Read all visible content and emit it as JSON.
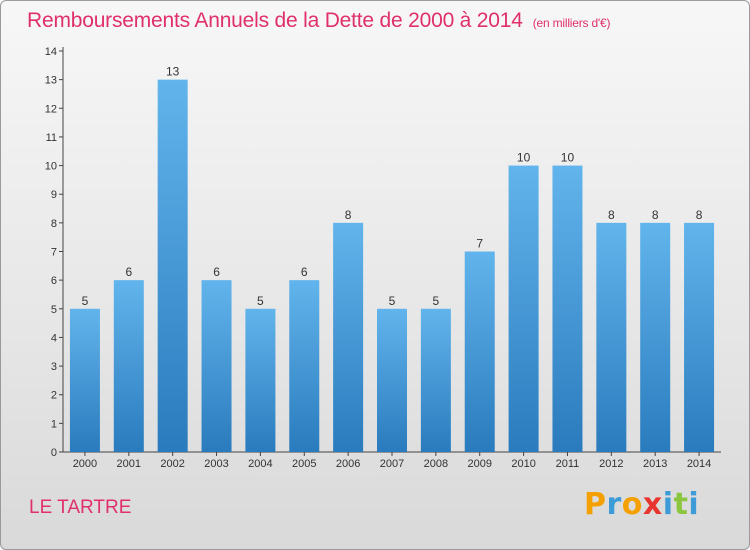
{
  "header": {
    "title": "Remboursements Annuels de la Dette de 2000 à 2014",
    "unit": "(en milliers d'€)"
  },
  "footer": {
    "commune": "LE TARTRE",
    "brand": "Proxiti"
  },
  "colors": {
    "title": "#e0306a",
    "bar_light": "#62b4ec",
    "bar_dark": "#2a7bbd",
    "brand_letters": [
      "#f4a000",
      "#3d9bd8",
      "#f4a000",
      "#e8352f",
      "#3d9bd8",
      "#8cc63f",
      "#3d9bd8"
    ]
  },
  "chart_data": {
    "type": "bar",
    "title": "Remboursements Annuels de la Dette de 2000 à 2014",
    "xlabel": "",
    "ylabel": "",
    "categories": [
      "2000",
      "2001",
      "2002",
      "2003",
      "2004",
      "2005",
      "2006",
      "2007",
      "2008",
      "2009",
      "2010",
      "2011",
      "2012",
      "2013",
      "2014"
    ],
    "values": [
      5,
      6,
      13,
      6,
      5,
      6,
      8,
      5,
      5,
      7,
      10,
      10,
      8,
      8,
      8
    ],
    "ylim": [
      0,
      14
    ],
    "yticks": [
      0,
      1,
      2,
      3,
      4,
      5,
      6,
      7,
      8,
      9,
      10,
      11,
      12,
      13,
      14
    ],
    "grid": false,
    "legend": "none"
  }
}
